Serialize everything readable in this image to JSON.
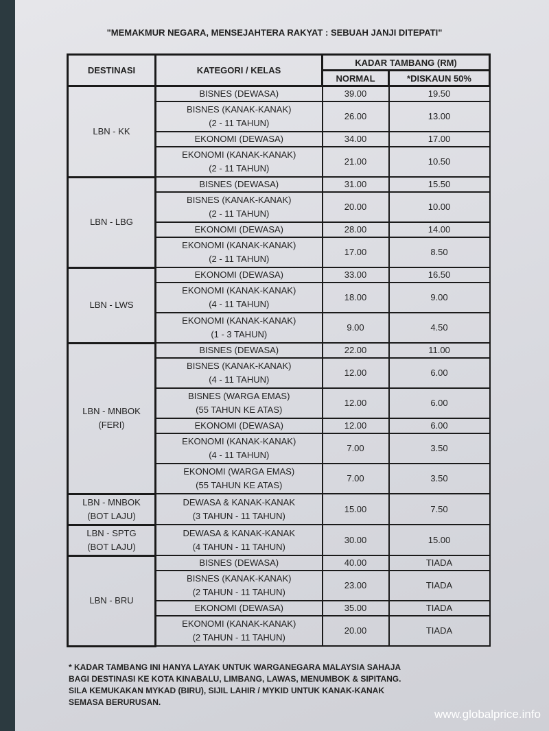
{
  "header": {
    "title": "\"MEMAKMUR NEGARA, MENSEJAHTERA RAKYAT : SEBUAH JANJI DITEPATI\""
  },
  "table": {
    "headers": {
      "destination": "DESTINASI",
      "category": "KATEGORI / KELAS",
      "fare": "KADAR TAMBANG  (RM)",
      "normal": "NORMAL",
      "discount": "*DISKAUN 50%"
    },
    "groups": [
      {
        "destination": [
          "LBN - KK"
        ],
        "rows": [
          {
            "category": [
              "BISNES (DEWASA)"
            ],
            "normal": "39.00",
            "discount": "19.50"
          },
          {
            "category": [
              "BISNES (KANAK-KANAK)",
              "(2 - 11 TAHUN)"
            ],
            "normal": "26.00",
            "discount": "13.00"
          },
          {
            "category": [
              "EKONOMI (DEWASA)"
            ],
            "normal": "34.00",
            "discount": "17.00"
          },
          {
            "category": [
              "EKONOMI (KANAK-KANAK)",
              "(2 - 11 TAHUN)"
            ],
            "normal": "21.00",
            "discount": "10.50"
          }
        ]
      },
      {
        "destination": [
          "LBN - LBG"
        ],
        "rows": [
          {
            "category": [
              "BISNES (DEWASA)"
            ],
            "normal": "31.00",
            "discount": "15.50"
          },
          {
            "category": [
              "BISNES (KANAK-KANAK)",
              "(2 - 11 TAHUN)"
            ],
            "normal": "20.00",
            "discount": "10.00"
          },
          {
            "category": [
              "EKONOMI (DEWASA)"
            ],
            "normal": "28.00",
            "discount": "14.00"
          },
          {
            "category": [
              "EKONOMI (KANAK-KANAK)",
              "(2 - 11 TAHUN)"
            ],
            "normal": "17.00",
            "discount": "8.50"
          }
        ]
      },
      {
        "destination": [
          "LBN - LWS"
        ],
        "rows": [
          {
            "category": [
              "EKONOMI (DEWASA)"
            ],
            "normal": "33.00",
            "discount": "16.50"
          },
          {
            "category": [
              "EKONOMI (KANAK-KANAK)",
              "(4 - 11 TAHUN)"
            ],
            "normal": "18.00",
            "discount": "9.00"
          },
          {
            "category": [
              "EKONOMI (KANAK-KANAK)",
              "(1 - 3 TAHUN)"
            ],
            "normal": "9.00",
            "discount": "4.50"
          }
        ]
      },
      {
        "destination": [
          "LBN - MNBOK",
          "(FERI)"
        ],
        "rows": [
          {
            "category": [
              "BISNES (DEWASA)"
            ],
            "normal": "22.00",
            "discount": "11.00"
          },
          {
            "category": [
              "BISNES (KANAK-KANAK)",
              "(4 - 11 TAHUN)"
            ],
            "normal": "12.00",
            "discount": "6.00"
          },
          {
            "category": [
              "BISNES (WARGA EMAS)",
              "(55 TAHUN KE ATAS)"
            ],
            "normal": "12.00",
            "discount": "6.00"
          },
          {
            "category": [
              "EKONOMI (DEWASA)"
            ],
            "normal": "12.00",
            "discount": "6.00"
          },
          {
            "category": [
              "EKONOMI (KANAK-KANAK)",
              "(4 - 11 TAHUN)"
            ],
            "normal": "7.00",
            "discount": "3.50"
          },
          {
            "category": [
              "EKONOMI (WARGA EMAS)",
              "(55 TAHUN KE ATAS)"
            ],
            "normal": "7.00",
            "discount": "3.50"
          }
        ]
      },
      {
        "destination": [
          "LBN - MNBOK",
          "(BOT LAJU)"
        ],
        "rows": [
          {
            "category": [
              "DEWASA & KANAK-KANAK",
              "(3 TAHUN - 11 TAHUN)"
            ],
            "normal": "15.00",
            "discount": "7.50"
          }
        ]
      },
      {
        "destination": [
          "LBN - SPTG",
          "(BOT LAJU)"
        ],
        "rows": [
          {
            "category": [
              "DEWASA & KANAK-KANAK",
              "(4 TAHUN - 11 TAHUN)"
            ],
            "normal": "30.00",
            "discount": "15.00"
          }
        ]
      },
      {
        "destination": [
          "LBN - BRU"
        ],
        "rows": [
          {
            "category": [
              "BISNES (DEWASA)"
            ],
            "normal": "40.00",
            "discount": "TIADA"
          },
          {
            "category": [
              "BISNES (KANAK-KANAK)",
              "(2 TAHUN - 11 TAHUN)"
            ],
            "normal": "23.00",
            "discount": "TIADA"
          },
          {
            "category": [
              "EKONOMI (DEWASA)"
            ],
            "normal": "35.00",
            "discount": "TIADA"
          },
          {
            "category": [
              "EKONOMI (KANAK-KANAK)",
              "(2 TAHUN - 11 TAHUN)"
            ],
            "normal": "20.00",
            "discount": "TIADA"
          }
        ]
      }
    ]
  },
  "footnote": [
    "* KADAR TAMBANG INI HANYA LAYAK UNTUK WARGANEGARA MALAYSIA SAHAJA",
    "BAGI DESTINASI KE KOTA KINABALU, LIMBANG, LAWAS, MENUMBOK & SIPITANG.",
    "SILA KEMUKAKAN MYKAD (BIRU), SIJIL LAHIR / MYKID UNTUK KANAK-KANAK",
    "SEMASA BERURUSAN."
  ],
  "watermark": "www.globalprice.info"
}
